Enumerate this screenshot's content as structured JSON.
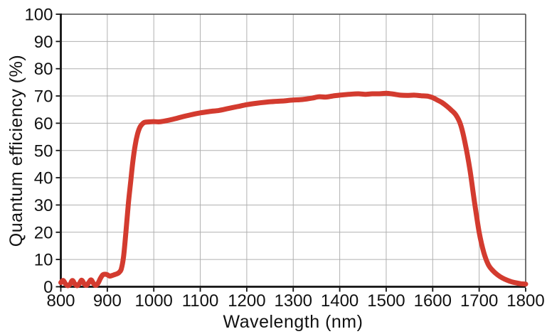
{
  "chart": {
    "title": "",
    "xlabel": "Wavelength (nm)",
    "ylabel": "Quantum efficiency (%)"
  },
  "colors": {
    "background": "#ffffff",
    "grid": "#b0b0b0",
    "frame": "#4d4d4d",
    "axis": "#111111",
    "text": "#111111",
    "curve": "#d33b2f"
  },
  "chart_data": {
    "type": "line",
    "title": "",
    "xlabel": "Wavelength (nm)",
    "ylabel": "Quantum efficiency (%)",
    "xlim": [
      800,
      1800
    ],
    "ylim": [
      0,
      100
    ],
    "x_ticks": [
      800,
      900,
      1000,
      1100,
      1200,
      1300,
      1400,
      1500,
      1600,
      1700,
      1800
    ],
    "y_ticks": [
      0,
      10,
      20,
      30,
      40,
      50,
      60,
      70,
      80,
      90,
      100
    ],
    "grid": true,
    "legend_position": "none",
    "series": [
      {
        "name": "quantum-efficiency",
        "color": "#d33b2f",
        "line_width": 7,
        "points": [
          [
            800,
            1.5
          ],
          [
            805,
            2.3
          ],
          [
            810,
            1.1
          ],
          [
            815,
            0.4
          ],
          [
            820,
            1.0
          ],
          [
            825,
            2.3
          ],
          [
            830,
            1.1
          ],
          [
            835,
            0.4
          ],
          [
            840,
            1.2
          ],
          [
            845,
            2.4
          ],
          [
            850,
            1.1
          ],
          [
            855,
            0.5
          ],
          [
            860,
            1.5
          ],
          [
            865,
            2.5
          ],
          [
            870,
            1.3
          ],
          [
            875,
            0.5
          ],
          [
            880,
            1.3
          ],
          [
            885,
            3.0
          ],
          [
            890,
            4.3
          ],
          [
            895,
            4.6
          ],
          [
            900,
            4.4
          ],
          [
            905,
            3.9
          ],
          [
            910,
            4.1
          ],
          [
            915,
            4.4
          ],
          [
            920,
            4.7
          ],
          [
            925,
            5.2
          ],
          [
            930,
            6.5
          ],
          [
            935,
            11
          ],
          [
            940,
            20
          ],
          [
            945,
            30
          ],
          [
            950,
            38
          ],
          [
            955,
            46
          ],
          [
            960,
            52
          ],
          [
            965,
            56
          ],
          [
            970,
            58.5
          ],
          [
            975,
            59.7
          ],
          [
            980,
            60.3
          ],
          [
            990,
            60.5
          ],
          [
            1000,
            60.6
          ],
          [
            1010,
            60.5
          ],
          [
            1020,
            60.7
          ],
          [
            1040,
            61.4
          ],
          [
            1060,
            62.3
          ],
          [
            1080,
            63.1
          ],
          [
            1100,
            63.8
          ],
          [
            1120,
            64.3
          ],
          [
            1140,
            64.7
          ],
          [
            1160,
            65.4
          ],
          [
            1180,
            66.1
          ],
          [
            1200,
            66.8
          ],
          [
            1220,
            67.3
          ],
          [
            1240,
            67.7
          ],
          [
            1260,
            68.0
          ],
          [
            1280,
            68.2
          ],
          [
            1300,
            68.5
          ],
          [
            1320,
            68.7
          ],
          [
            1340,
            69.2
          ],
          [
            1355,
            69.7
          ],
          [
            1370,
            69.6
          ],
          [
            1385,
            70.0
          ],
          [
            1400,
            70.3
          ],
          [
            1420,
            70.6
          ],
          [
            1440,
            70.8
          ],
          [
            1455,
            70.6
          ],
          [
            1470,
            70.8
          ],
          [
            1485,
            70.8
          ],
          [
            1500,
            71.0
          ],
          [
            1515,
            70.7
          ],
          [
            1530,
            70.3
          ],
          [
            1545,
            70.2
          ],
          [
            1560,
            70.3
          ],
          [
            1575,
            70.1
          ],
          [
            1590,
            69.9
          ],
          [
            1600,
            69.4
          ],
          [
            1610,
            68.5
          ],
          [
            1620,
            67.6
          ],
          [
            1630,
            66.3
          ],
          [
            1640,
            64.8
          ],
          [
            1650,
            63.0
          ],
          [
            1660,
            59.5
          ],
          [
            1670,
            52.5
          ],
          [
            1680,
            43
          ],
          [
            1690,
            31
          ],
          [
            1700,
            20
          ],
          [
            1710,
            12.5
          ],
          [
            1720,
            8
          ],
          [
            1730,
            5.8
          ],
          [
            1740,
            4.3
          ],
          [
            1750,
            3.2
          ],
          [
            1760,
            2.4
          ],
          [
            1770,
            1.8
          ],
          [
            1780,
            1.4
          ],
          [
            1790,
            1.1
          ],
          [
            1800,
            1.0
          ]
        ]
      }
    ]
  }
}
